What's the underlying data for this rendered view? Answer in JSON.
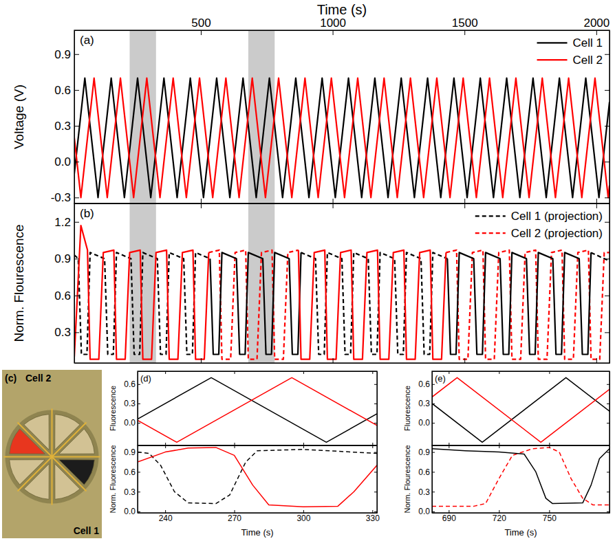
{
  "chart_data": [
    {
      "type": "line",
      "panel_label": "(a)",
      "x_label": "Time (s)",
      "y_label": "Voltage (V)",
      "xlim": [
        20,
        2050
      ],
      "xticks": [
        500,
        1000,
        1500,
        2000
      ],
      "ylim": [
        -0.35,
        1.1
      ],
      "yticks": [
        -0.3,
        {
          "value": 0,
          "label": "0.0"
        },
        0.3,
        0.6,
        0.9
      ],
      "legend": "upper right",
      "highlight_ranges": [
        [
          230,
          330
        ],
        [
          680,
          780
        ]
      ],
      "series": [
        {
          "name": "Cell 1",
          "color": "#000000",
          "line_style": "solid",
          "x": [
            20,
            60,
            110,
            160,
            210,
            260,
            310,
            360,
            410,
            460,
            510,
            560,
            610,
            660,
            710,
            760,
            810,
            860,
            910,
            960,
            1010,
            1060,
            1110,
            1160,
            1210,
            1260,
            1310,
            1360,
            1410,
            1460,
            1510,
            1560,
            1610,
            1660,
            1710,
            1760,
            1810,
            1860,
            1910,
            1960,
            2010,
            2050
          ],
          "values": [
            -0.1,
            0.7,
            -0.3,
            0.7,
            -0.3,
            0.7,
            -0.3,
            0.7,
            -0.3,
            0.7,
            -0.3,
            0.7,
            -0.3,
            0.7,
            -0.3,
            0.7,
            -0.3,
            0.7,
            -0.3,
            0.7,
            -0.3,
            0.7,
            -0.3,
            0.7,
            -0.3,
            0.7,
            -0.3,
            0.7,
            -0.3,
            0.7,
            -0.3,
            0.7,
            -0.3,
            0.7,
            -0.3,
            0.7,
            -0.3,
            0.7,
            -0.3,
            0.7,
            -0.3,
            0.5
          ]
        },
        {
          "name": "Cell 2",
          "color": "#ff0000",
          "line_style": "solid",
          "x": [
            20,
            45,
            95,
            145,
            195,
            245,
            295,
            345,
            395,
            445,
            495,
            545,
            595,
            645,
            695,
            745,
            795,
            845,
            895,
            945,
            995,
            1045,
            1095,
            1145,
            1195,
            1245,
            1295,
            1345,
            1395,
            1445,
            1495,
            1545,
            1595,
            1645,
            1695,
            1745,
            1795,
            1845,
            1895,
            1945,
            1995,
            2045,
            2050
          ],
          "values": [
            0.2,
            -0.3,
            0.7,
            -0.3,
            0.7,
            -0.3,
            0.7,
            -0.3,
            0.7,
            -0.3,
            0.7,
            -0.3,
            0.7,
            -0.3,
            0.7,
            -0.3,
            0.7,
            -0.3,
            0.7,
            -0.3,
            0.7,
            -0.3,
            0.7,
            -0.3,
            0.7,
            -0.3,
            0.7,
            -0.3,
            0.7,
            -0.3,
            0.7,
            -0.3,
            0.7,
            -0.3,
            0.7,
            -0.3,
            0.7,
            -0.3,
            0.7,
            -0.3,
            0.7,
            -0.3,
            -0.2
          ]
        }
      ]
    },
    {
      "type": "line",
      "panel_label": "(b)",
      "y_label": "Norm. Flourescence",
      "xlim": [
        20,
        2050
      ],
      "xticks": [
        500,
        1000,
        1500,
        2000
      ],
      "tick_labels": "y",
      "ylim": [
        0.05,
        1.35
      ],
      "yticks": [
        0.3,
        0.6,
        0.9,
        1.2
      ],
      "legend": "upper right",
      "highlight_ranges": [
        [
          230,
          330
        ],
        [
          680,
          780
        ]
      ],
      "series": [
        {
          "name": "Cell 1 (projection)",
          "color": "#000000",
          "line_style": "dashed",
          "x": [
            20,
            35,
            47,
            68,
            80,
            135,
            147,
            168,
            180,
            235,
            247,
            268,
            280,
            335,
            347,
            368,
            380,
            435,
            447,
            468,
            480,
            535,
            null,
            880,
            935,
            947,
            968,
            980,
            1035,
            1047,
            1068,
            1080,
            1135,
            1147,
            1168,
            1180,
            1235,
            1247,
            1268,
            1280,
            1335,
            1347,
            1368,
            1380,
            1435,
            null,
            1980,
            2050
          ],
          "values": [
            0.93,
            0.9,
            0.12,
            0.12,
            0.95,
            0.9,
            0.12,
            0.12,
            0.95,
            0.9,
            0.12,
            0.12,
            0.95,
            0.9,
            0.12,
            0.12,
            0.95,
            0.9,
            0.12,
            0.12,
            0.95,
            0.9,
            null,
            0.95,
            0.9,
            0.12,
            0.12,
            0.95,
            0.9,
            0.12,
            0.12,
            0.95,
            0.9,
            0.12,
            0.12,
            0.95,
            0.9,
            0.12,
            0.12,
            0.95,
            0.9,
            0.12,
            0.12,
            0.95,
            0.9,
            null,
            0.95,
            0.88
          ]
        },
        {
          "name": "Cell 2 (projection)",
          "color": "#ff0000",
          "line_style": "dashed",
          "x": [
            530,
            570,
            580,
            613,
            630,
            670,
            680,
            713,
            730,
            770,
            780,
            813,
            830,
            870,
            null,
            1430,
            1470,
            1480,
            1513,
            1530,
            1570,
            1580,
            1613,
            1630,
            1670,
            1680,
            1713,
            1730,
            1770,
            1780,
            1813,
            1830,
            1870,
            1880,
            1913,
            1930,
            1970,
            1980,
            2013,
            2030,
            2050
          ],
          "values": [
            0.95,
            0.97,
            0.08,
            0.08,
            0.95,
            0.97,
            0.08,
            0.08,
            0.95,
            0.97,
            0.08,
            0.08,
            0.95,
            0.97,
            null,
            0.95,
            0.97,
            0.08,
            0.08,
            0.95,
            0.97,
            0.08,
            0.08,
            0.95,
            0.97,
            0.08,
            0.08,
            0.95,
            0.97,
            0.08,
            0.08,
            0.95,
            0.97,
            0.08,
            0.08,
            0.95,
            0.97,
            0.08,
            0.08,
            0.95,
            0.95
          ]
        },
        {
          "color": "#000000",
          "line_style": "solid",
          "x": [
            535,
            547,
            568,
            580,
            635,
            647,
            668,
            680,
            735,
            747,
            768,
            780,
            835,
            847,
            868,
            880,
            null,
            1435,
            1447,
            1468,
            1480,
            1535,
            1547,
            1568,
            1580,
            1635,
            1647,
            1668,
            1680,
            1735,
            1747,
            1768,
            1780,
            1835,
            1847,
            1868,
            1880,
            1935,
            1947,
            1968,
            1980
          ],
          "values": [
            0.9,
            0.12,
            0.12,
            0.95,
            0.9,
            0.12,
            0.12,
            0.95,
            0.9,
            0.12,
            0.12,
            0.95,
            0.9,
            0.12,
            0.12,
            0.95,
            null,
            0.9,
            0.12,
            0.12,
            0.95,
            0.9,
            0.12,
            0.12,
            0.95,
            0.9,
            0.12,
            0.12,
            0.95,
            0.9,
            0.12,
            0.12,
            0.95,
            0.9,
            0.12,
            0.12,
            0.95,
            0.9,
            0.12,
            0.12,
            0.95
          ]
        },
        {
          "color": "#ff0000",
          "line_style": "solid",
          "x": [
            20,
            45,
            70,
            80,
            113,
            130,
            170,
            180,
            213,
            230,
            270,
            280,
            313,
            330,
            370,
            380,
            413,
            430,
            470,
            480,
            513,
            530,
            null,
            870,
            880,
            913,
            930,
            970,
            980,
            1013,
            1030,
            1070,
            1080,
            1113,
            1130,
            1170,
            1180,
            1213,
            1230,
            1270,
            1280,
            1313,
            1330,
            1370,
            1380,
            1413,
            1430
          ],
          "values": [
            0.1,
            1.17,
            0.97,
            0.08,
            0.08,
            0.95,
            0.97,
            0.08,
            0.08,
            0.95,
            0.97,
            0.08,
            0.08,
            0.95,
            0.97,
            0.08,
            0.08,
            0.95,
            0.97,
            0.08,
            0.08,
            0.95,
            null,
            0.97,
            0.08,
            0.08,
            0.95,
            0.97,
            0.08,
            0.08,
            0.95,
            0.97,
            0.08,
            0.08,
            0.95,
            0.97,
            0.08,
            0.08,
            0.95,
            0.97,
            0.08,
            0.08,
            0.95,
            0.97,
            0.08,
            0.08,
            0.95
          ]
        }
      ]
    },
    {
      "type": "image",
      "panel_label": "(c)",
      "labels": [
        "Cell 2",
        "Cell 1"
      ],
      "colors": [
        "#e8361e",
        "#1c1c1c"
      ]
    },
    {
      "type": "line",
      "panel_label": "(d)",
      "x_label": "Time (s)",
      "xlim": [
        228,
        332
      ],
      "xticks": [
        240,
        270,
        300,
        330
      ],
      "subplots": [
        {
          "y_label": "Fluorescence",
          "tick_labels": "y",
          "ylim": [
            -0.35,
            0.8
          ],
          "yticks": [
            {
              "value": 0,
              "label": "0.0"
            },
            0.3,
            0.6
          ],
          "series": [
            {
              "color": "#000000",
              "line_style": "solid",
              "x": [
                228,
                260,
                310,
                332
              ],
              "values": [
                0.06,
                0.7,
                -0.3,
                0.14
              ]
            },
            {
              "color": "#ff0000",
              "line_style": "solid",
              "x": [
                228,
                245,
                295,
                332
              ],
              "values": [
                0.04,
                -0.3,
                0.7,
                -0.04
              ]
            }
          ]
        },
        {
          "y_label": "Norm. Fluorescence",
          "ylim": [
            -0.02,
            1.0
          ],
          "yticks": [
            {
              "value": 0,
              "label": "0.0"
            },
            0.3,
            0.6,
            0.9
          ],
          "series": [
            {
              "color": "#000000",
              "line_style": "dashed",
              "x": [
                228,
                233,
                238,
                244,
                250,
                262,
                268,
                275,
                280,
                300,
                332
              ],
              "values": [
                0.9,
                0.88,
                0.7,
                0.3,
                0.13,
                0.12,
                0.25,
                0.75,
                0.92,
                0.94,
                0.88
              ]
            },
            {
              "color": "#ff0000",
              "line_style": "solid",
              "x": [
                228,
                240,
                250,
                262,
                270,
                278,
                285,
                300,
                315,
                322,
                332
              ],
              "values": [
                0.75,
                0.9,
                0.96,
                0.97,
                0.85,
                0.4,
                0.1,
                0.07,
                0.08,
                0.3,
                0.7
              ]
            }
          ]
        }
      ]
    },
    {
      "type": "line",
      "panel_label": "(e)",
      "x_label": "Time (s)",
      "xlim": [
        680,
        786
      ],
      "xticks": [
        690,
        720,
        750
      ],
      "subplots": [
        {
          "y_label": "Fluorescence",
          "tick_labels": "y",
          "ylim": [
            -0.35,
            0.8
          ],
          "yticks": [
            {
              "value": 0,
              "label": "0.0"
            },
            0.3,
            0.6
          ],
          "series": [
            {
              "color": "#000000",
              "line_style": "solid",
              "x": [
                680,
                710,
                760,
                786
              ],
              "values": [
                0.3,
                -0.3,
                0.7,
                0.18
              ]
            },
            {
              "color": "#ff0000",
              "line_style": "solid",
              "x": [
                680,
                695,
                745,
                786
              ],
              "values": [
                0.4,
                0.7,
                -0.3,
                0.52
              ]
            }
          ]
        },
        {
          "y_label": "Norm. Flourescence",
          "ylim": [
            -0.02,
            1.0
          ],
          "yticks": [
            {
              "value": 0,
              "label": "0.0"
            },
            0.3,
            0.6,
            0.9
          ],
          "series": [
            {
              "color": "#000000",
              "line_style": "solid",
              "x": [
                680,
                700,
                720,
                735,
                742,
                748,
                752,
                770,
                775,
                780,
                786
              ],
              "values": [
                0.95,
                0.92,
                0.9,
                0.87,
                0.6,
                0.2,
                0.12,
                0.13,
                0.4,
                0.8,
                0.95
              ]
            },
            {
              "color": "#ff0000",
              "line_style": "dashed",
              "x": [
                680,
                705,
                712,
                720,
                728,
                740,
                750,
                756,
                763,
                770,
                776,
                786
              ],
              "values": [
                0.08,
                0.08,
                0.12,
                0.5,
                0.85,
                0.95,
                0.97,
                0.9,
                0.5,
                0.2,
                0.1,
                0.1
              ]
            }
          ]
        }
      ]
    }
  ]
}
